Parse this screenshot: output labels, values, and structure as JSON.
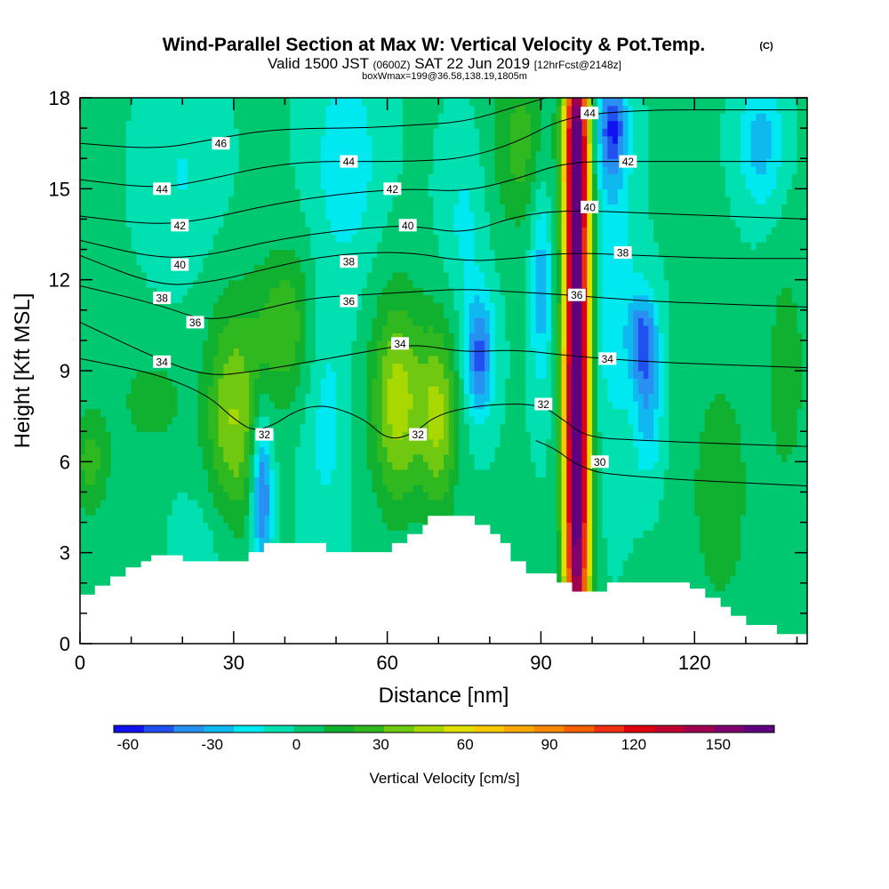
{
  "chart_data": {
    "type": "heatmap",
    "title": "Wind-Parallel Section at Max W: Vertical Velocity & Pot.Temp.",
    "title_mark": "(C)",
    "subtitle": {
      "prefix": "Valid 1500 JST",
      "utc": "(0600Z)",
      "date": "SAT 22 Jun 2019",
      "forecast": "[12hrFcst@2148z]"
    },
    "subtitle2": "boxWmax=199@36.58,138.19,1805m",
    "xlabel": "Distance [nm]",
    "ylabel": "Height [Kft MSL]",
    "xlim": [
      0,
      142
    ],
    "ylim": [
      0,
      18
    ],
    "x_ticks": [
      0,
      30,
      60,
      90,
      120
    ],
    "y_ticks": [
      0,
      3,
      6,
      9,
      12,
      15,
      18
    ],
    "colorbar": {
      "label": "Vertical Velocity [cm/s]",
      "ticks": [
        -60,
        -30,
        0,
        30,
        60,
        90,
        120,
        150
      ],
      "range": [
        -65,
        170
      ],
      "colors": [
        "#1010f0",
        "#2050f0",
        "#2890f0",
        "#10b8f0",
        "#00e8f0",
        "#00e0b0",
        "#00c870",
        "#10b030",
        "#30b820",
        "#70c810",
        "#a8d800",
        "#e0e000",
        "#f8c800",
        "#f8a800",
        "#f88800",
        "#f86000",
        "#f03010",
        "#e00010",
        "#c00030",
        "#a00050",
        "#800070",
        "#5e0080"
      ]
    },
    "terrain": [
      [
        0,
        1.6
      ],
      [
        3,
        1.6
      ],
      [
        3,
        1.9
      ],
      [
        6,
        1.9
      ],
      [
        6,
        2.2
      ],
      [
        9,
        2.2
      ],
      [
        9,
        2.5
      ],
      [
        12,
        2.5
      ],
      [
        12,
        2.7
      ],
      [
        14,
        2.7
      ],
      [
        14,
        2.9
      ],
      [
        20,
        2.9
      ],
      [
        20,
        2.7
      ],
      [
        33,
        2.7
      ],
      [
        33,
        3.0
      ],
      [
        36,
        3.0
      ],
      [
        36,
        3.3
      ],
      [
        48,
        3.3
      ],
      [
        48,
        3.0
      ],
      [
        61,
        3.0
      ],
      [
        61,
        3.3
      ],
      [
        64,
        3.3
      ],
      [
        64,
        3.6
      ],
      [
        67,
        3.6
      ],
      [
        67,
        3.9
      ],
      [
        68,
        3.9
      ],
      [
        68,
        4.2
      ],
      [
        77,
        4.2
      ],
      [
        77,
        3.9
      ],
      [
        80,
        3.9
      ],
      [
        80,
        3.6
      ],
      [
        82,
        3.6
      ],
      [
        82,
        3.3
      ],
      [
        84,
        3.3
      ],
      [
        84,
        2.7
      ],
      [
        87,
        2.7
      ],
      [
        87,
        2.3
      ],
      [
        93,
        2.3
      ],
      [
        93,
        2.0
      ],
      [
        96,
        2.0
      ],
      [
        96,
        1.7
      ],
      [
        103,
        1.7
      ],
      [
        103,
        2.0
      ],
      [
        119,
        2.0
      ],
      [
        119,
        1.8
      ],
      [
        122,
        1.8
      ],
      [
        122,
        1.5
      ],
      [
        125,
        1.5
      ],
      [
        125,
        1.2
      ],
      [
        127,
        1.2
      ],
      [
        127,
        0.9
      ],
      [
        130,
        0.9
      ],
      [
        130,
        0.6
      ],
      [
        136,
        0.6
      ],
      [
        136,
        0.3
      ],
      [
        142,
        0.3
      ]
    ],
    "w_features": [
      {
        "x": 97,
        "z": 8.0,
        "sx": 1.7,
        "sz": 9.0,
        "w": 190
      },
      {
        "x": 97,
        "z": 16.5,
        "sx": 1.6,
        "sz": 2.0,
        "w": 60
      },
      {
        "x": 30,
        "z": 7.5,
        "sx": 3.8,
        "sz": 2.6,
        "w": 42
      },
      {
        "x": 40,
        "z": 10.5,
        "sx": 4.0,
        "sz": 1.8,
        "w": 28
      },
      {
        "x": 62,
        "z": 8.0,
        "sx": 3.6,
        "sz": 2.4,
        "w": 48
      },
      {
        "x": 70,
        "z": 7.5,
        "sx": 2.6,
        "sz": 2.2,
        "w": 42
      },
      {
        "x": 86,
        "z": 16.5,
        "sx": 4.0,
        "sz": 2.0,
        "w": 25
      },
      {
        "x": 2,
        "z": 6.0,
        "sx": 2.6,
        "sz": 1.2,
        "w": 25
      },
      {
        "x": 14,
        "z": 8.0,
        "sx": 5.0,
        "sz": 1.2,
        "w": 15
      },
      {
        "x": 125,
        "z": 5.0,
        "sx": 5.0,
        "sz": 3.5,
        "w": 15
      },
      {
        "x": 138,
        "z": 9.0,
        "sx": 3.0,
        "sz": 3.0,
        "w": 15
      },
      {
        "x": 35.5,
        "z": 5.0,
        "sx": 1.4,
        "sz": 1.8,
        "w": -52
      },
      {
        "x": 78,
        "z": 9.5,
        "sx": 2.0,
        "sz": 1.4,
        "w": -48
      },
      {
        "x": 104,
        "z": 17.0,
        "sx": 2.0,
        "sz": 1.2,
        "w": -48
      },
      {
        "x": 110,
        "z": 10.0,
        "sx": 2.0,
        "sz": 1.2,
        "w": -45
      },
      {
        "x": 111,
        "z": 7.5,
        "sx": 2.0,
        "sz": 1.5,
        "w": -25
      },
      {
        "x": 90,
        "z": 12.0,
        "sx": 1.4,
        "sz": 2.5,
        "w": -30
      },
      {
        "x": 104,
        "z": 12.0,
        "sx": 3.0,
        "sz": 4.0,
        "w": -20
      },
      {
        "x": 133,
        "z": 16.5,
        "sx": 3.0,
        "sz": 1.5,
        "w": -28
      },
      {
        "x": 52,
        "z": 16.0,
        "sx": 4.5,
        "sz": 2.5,
        "w": -20
      },
      {
        "x": 48,
        "z": 7.5,
        "sx": 3.0,
        "sz": 3.0,
        "w": -16
      },
      {
        "x": 20,
        "z": 15.5,
        "sx": 5.0,
        "sz": 2.0,
        "w": -12
      },
      {
        "x": 25,
        "z": 3.5,
        "sx": 4.0,
        "sz": 1.3,
        "w": -8
      },
      {
        "x": 75,
        "z": 14.0,
        "sx": 3.0,
        "sz": 2.0,
        "w": -14
      }
    ],
    "theta_isolines": [
      {
        "level": 30,
        "points": [
          [
            89,
            6.7
          ],
          [
            93,
            6.4
          ],
          [
            96,
            6.0
          ],
          [
            100,
            5.7
          ],
          [
            103,
            5.6
          ],
          [
            110,
            5.5
          ],
          [
            118,
            5.4
          ],
          [
            130,
            5.3
          ],
          [
            142,
            5.2
          ]
        ]
      },
      {
        "level": 32,
        "points": [
          [
            0,
            9.4
          ],
          [
            15,
            8.9
          ],
          [
            25,
            8.2
          ],
          [
            30,
            7.4
          ],
          [
            35,
            6.9
          ],
          [
            45,
            8.0
          ],
          [
            55,
            7.5
          ],
          [
            60,
            6.7
          ],
          [
            65,
            6.9
          ],
          [
            70,
            7.6
          ],
          [
            80,
            7.9
          ],
          [
            90,
            7.9
          ],
          [
            95,
            7.3
          ],
          [
            99,
            6.8
          ],
          [
            110,
            6.7
          ],
          [
            125,
            6.6
          ],
          [
            142,
            6.5
          ]
        ]
      },
      {
        "level": 34,
        "points": [
          [
            0,
            10.6
          ],
          [
            15,
            9.4
          ],
          [
            25,
            8.8
          ],
          [
            35,
            9.0
          ],
          [
            45,
            9.3
          ],
          [
            55,
            9.6
          ],
          [
            65,
            9.9
          ],
          [
            75,
            9.6
          ],
          [
            85,
            9.7
          ],
          [
            95,
            9.5
          ],
          [
            110,
            9.3
          ],
          [
            125,
            9.2
          ],
          [
            142,
            9.1
          ]
        ]
      },
      {
        "level": 36,
        "points": [
          [
            0,
            11.8
          ],
          [
            15,
            11.2
          ],
          [
            25,
            10.6
          ],
          [
            35,
            11.0
          ],
          [
            45,
            11.4
          ],
          [
            55,
            11.5
          ],
          [
            65,
            11.6
          ],
          [
            75,
            11.7
          ],
          [
            85,
            11.6
          ],
          [
            95,
            11.5
          ],
          [
            110,
            11.3
          ],
          [
            125,
            11.2
          ],
          [
            142,
            11.1
          ]
        ]
      },
      {
        "level": 38,
        "points": [
          [
            0,
            12.8
          ],
          [
            15,
            11.8
          ],
          [
            25,
            11.9
          ],
          [
            35,
            12.3
          ],
          [
            45,
            12.7
          ],
          [
            55,
            12.9
          ],
          [
            65,
            12.9
          ],
          [
            75,
            12.6
          ],
          [
            85,
            12.7
          ],
          [
            95,
            12.9
          ],
          [
            110,
            12.8
          ],
          [
            125,
            12.7
          ],
          [
            142,
            12.7
          ]
        ]
      },
      {
        "level": 40,
        "points": [
          [
            0,
            13.3
          ],
          [
            15,
            12.7
          ],
          [
            25,
            12.8
          ],
          [
            35,
            13.2
          ],
          [
            45,
            13.5
          ],
          [
            55,
            13.7
          ],
          [
            65,
            13.8
          ],
          [
            75,
            13.5
          ],
          [
            85,
            14.1
          ],
          [
            95,
            14.3
          ],
          [
            110,
            14.2
          ],
          [
            125,
            14.1
          ],
          [
            142,
            14.0
          ]
        ]
      },
      {
        "level": 42,
        "points": [
          [
            0,
            14.1
          ],
          [
            15,
            13.8
          ],
          [
            25,
            14.0
          ],
          [
            35,
            14.4
          ],
          [
            45,
            14.7
          ],
          [
            55,
            14.9
          ],
          [
            65,
            15.0
          ],
          [
            75,
            14.9
          ],
          [
            85,
            15.3
          ],
          [
            95,
            15.9
          ],
          [
            110,
            15.9
          ],
          [
            125,
            15.9
          ],
          [
            142,
            15.9
          ]
        ]
      },
      {
        "level": 44,
        "points": [
          [
            0,
            15.3
          ],
          [
            15,
            15.0
          ],
          [
            25,
            15.3
          ],
          [
            35,
            15.7
          ],
          [
            45,
            15.9
          ],
          [
            55,
            15.9
          ],
          [
            65,
            15.9
          ],
          [
            75,
            16.0
          ],
          [
            85,
            16.5
          ],
          [
            95,
            17.4
          ],
          [
            110,
            17.6
          ],
          [
            125,
            17.6
          ],
          [
            142,
            17.6
          ]
        ]
      },
      {
        "level": 46,
        "points": [
          [
            0,
            16.5
          ],
          [
            15,
            16.3
          ],
          [
            25,
            16.6
          ],
          [
            35,
            16.9
          ],
          [
            45,
            17.0
          ],
          [
            55,
            17.0
          ],
          [
            65,
            17.1
          ],
          [
            75,
            17.2
          ],
          [
            85,
            17.7
          ],
          [
            95,
            18.2
          ]
        ]
      }
    ],
    "contour_labels": [
      {
        "text": "46",
        "x": 27.5,
        "z": 16.5
      },
      {
        "text": "44",
        "x": 16,
        "z": 15.0
      },
      {
        "text": "44",
        "x": 52.5,
        "z": 15.9
      },
      {
        "text": "44",
        "x": 99.5,
        "z": 17.5
      },
      {
        "text": "42",
        "x": 19.5,
        "z": 13.8
      },
      {
        "text": "42",
        "x": 61,
        "z": 15.0
      },
      {
        "text": "42",
        "x": 107,
        "z": 15.9
      },
      {
        "text": "40",
        "x": 19.5,
        "z": 12.5
      },
      {
        "text": "40",
        "x": 64,
        "z": 13.8
      },
      {
        "text": "40",
        "x": 99.5,
        "z": 14.4
      },
      {
        "text": "38",
        "x": 16,
        "z": 11.4
      },
      {
        "text": "38",
        "x": 52.5,
        "z": 12.6
      },
      {
        "text": "38",
        "x": 106,
        "z": 12.9
      },
      {
        "text": "36",
        "x": 22.5,
        "z": 10.6
      },
      {
        "text": "36",
        "x": 52.5,
        "z": 11.3
      },
      {
        "text": "36",
        "x": 97,
        "z": 11.5
      },
      {
        "text": "34",
        "x": 16,
        "z": 9.3
      },
      {
        "text": "34",
        "x": 62.5,
        "z": 9.9
      },
      {
        "text": "34",
        "x": 103,
        "z": 9.4
      },
      {
        "text": "32",
        "x": 36,
        "z": 6.9
      },
      {
        "text": "32",
        "x": 66,
        "z": 6.9
      },
      {
        "text": "32",
        "x": 90.5,
        "z": 7.9
      },
      {
        "text": "30",
        "x": 101.5,
        "z": 6.0
      }
    ]
  }
}
